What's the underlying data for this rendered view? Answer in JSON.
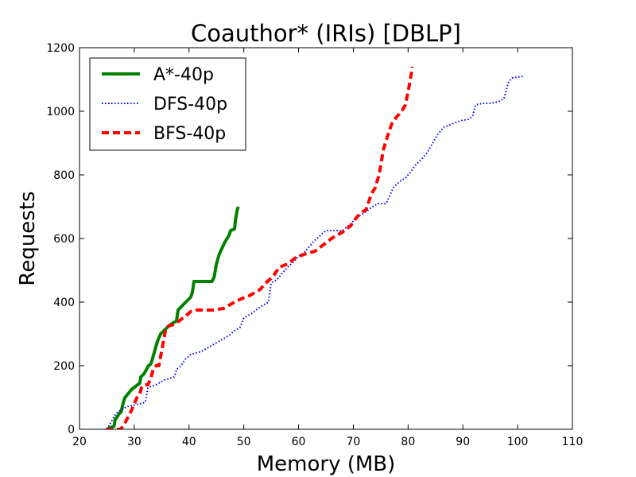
{
  "chart_data": {
    "type": "line",
    "title": "Coauthor* (IRIs) [DBLP]",
    "xlabel": "Memory (MB)",
    "ylabel": "Requests",
    "xlim": [
      20,
      110
    ],
    "ylim": [
      0,
      1200
    ],
    "xticks": [
      20,
      30,
      40,
      50,
      60,
      70,
      80,
      90,
      100,
      110
    ],
    "yticks": [
      0,
      200,
      400,
      600,
      800,
      1000,
      1200
    ],
    "grid": false,
    "legend_position": "top-left",
    "series": [
      {
        "name": "A*-40p",
        "color": "#008000",
        "dash": "solid",
        "x": [
          25,
          26.3,
          26.5,
          27.3,
          27.6,
          28,
          28.3,
          28.8,
          29.5,
          31,
          31.2,
          31.8,
          32.6,
          33,
          33.3,
          33.7,
          34.2,
          34.8,
          35.7,
          36,
          36.7,
          37.1,
          37.7,
          38,
          39.4,
          40.3,
          40.6,
          40.9,
          41.3,
          42,
          44.2,
          44.6,
          45,
          45.5,
          46.3,
          46.6,
          47.3,
          47.6,
          48.3,
          48.5,
          48.8,
          49
        ],
        "y": [
          0,
          10,
          30,
          50,
          55,
          85,
          100,
          110,
          125,
          145,
          165,
          175,
          200,
          205,
          220,
          245,
          275,
          300,
          315,
          320,
          330,
          335,
          340,
          375,
          400,
          415,
          430,
          465,
          465,
          465,
          465,
          480,
          520,
          550,
          580,
          590,
          610,
          625,
          630,
          660,
          690,
          700
        ]
      },
      {
        "name": "DFS-40p",
        "color": "#0000ff",
        "dash": "dotted",
        "x": [
          25,
          26.5,
          27,
          28,
          28.5,
          29.5,
          31,
          32,
          32.5,
          33,
          34,
          35.5,
          36.5,
          37.3,
          37.8,
          38.3,
          39.3,
          40.3,
          41.3,
          42.3,
          43.3,
          44.3,
          45.3,
          46.3,
          47.3,
          48.3,
          49.3,
          50,
          51.5,
          53,
          54.5,
          55,
          56,
          57,
          58,
          59,
          60,
          61,
          62,
          63,
          64,
          65,
          66,
          67,
          68,
          69.5,
          70.5,
          72,
          73.5,
          74.5,
          76,
          77.3,
          78.5,
          79.5,
          80.5,
          81.3,
          82.5,
          83.5,
          84.5,
          85.3,
          86.5,
          88,
          89.5,
          91,
          91.8,
          92.3,
          93.5,
          95,
          96.5,
          97.5,
          98.3,
          99,
          101
        ],
        "y": [
          0,
          45,
          55,
          65,
          70,
          75,
          80,
          85,
          130,
          135,
          140,
          155,
          160,
          165,
          190,
          195,
          220,
          235,
          240,
          245,
          255,
          265,
          275,
          285,
          295,
          310,
          320,
          350,
          365,
          385,
          400,
          460,
          470,
          490,
          510,
          525,
          545,
          555,
          575,
          595,
          610,
          625,
          625,
          625,
          625,
          645,
          665,
          680,
          700,
          710,
          710,
          760,
          780,
          790,
          810,
          830,
          850,
          870,
          900,
          925,
          950,
          960,
          970,
          975,
          985,
          1020,
          1025,
          1025,
          1030,
          1040,
          1090,
          1105,
          1110
        ]
      },
      {
        "name": "BFS-40p",
        "color": "#ff0000",
        "dash": "dashed",
        "x": [
          24.8,
          27.5,
          28.3,
          29.5,
          30.5,
          31,
          31.3,
          31.8,
          32.5,
          33,
          33.5,
          34,
          34.5,
          35.2,
          35.8,
          36.3,
          37.3,
          39.3,
          40.3,
          41.3,
          42.3,
          44.3,
          46.3,
          47.3,
          48.3,
          49.5,
          50.2,
          51,
          53,
          54,
          55.3,
          56.5,
          58,
          59.5,
          61,
          63,
          64.5,
          66,
          68,
          69.5,
          70.3,
          71.3,
          72.3,
          73.3,
          74,
          74.7,
          75.5,
          76.2,
          77,
          77.8,
          78.8,
          79.5,
          80.2,
          80.8
        ],
        "y": [
          0,
          0,
          20,
          60,
          100,
          110,
          130,
          140,
          140,
          160,
          190,
          200,
          200,
          265,
          320,
          325,
          330,
          355,
          370,
          375,
          375,
          375,
          380,
          390,
          400,
          410,
          415,
          420,
          440,
          460,
          480,
          510,
          520,
          540,
          550,
          560,
          580,
          600,
          620,
          640,
          660,
          680,
          690,
          740,
          760,
          800,
          880,
          920,
          960,
          980,
          1000,
          1020,
          1080,
          1140
        ]
      }
    ]
  }
}
